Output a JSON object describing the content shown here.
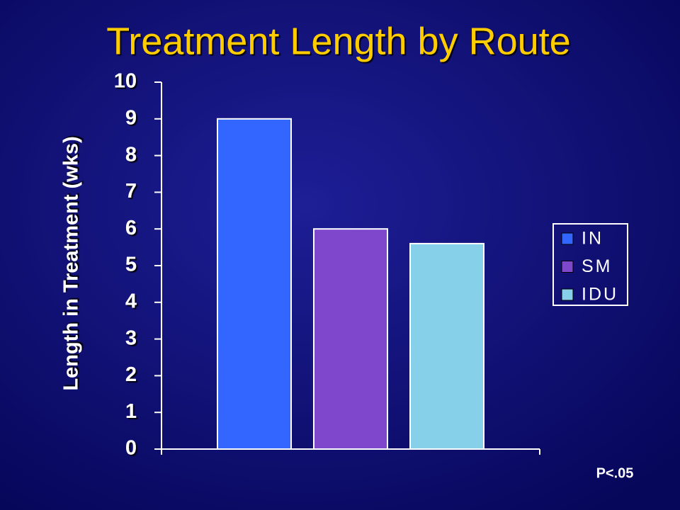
{
  "chart_data": {
    "type": "bar",
    "title": "Treatment Length by Route",
    "y_label": "Length in Treatment (wks)",
    "annotation": "P<.05",
    "categories": [
      null
    ],
    "series": [
      {
        "name": "IN",
        "color": "#3366ff",
        "values": [
          9
        ]
      },
      {
        "name": "SM",
        "color": "#7f48cc",
        "values": [
          6
        ]
      },
      {
        "name": "IDU",
        "color": "#87d0ea",
        "values": [
          5.6
        ]
      }
    ],
    "ylim": [
      0,
      10
    ],
    "yticks": [
      0,
      1,
      2,
      3,
      4,
      5,
      6,
      7,
      8,
      9,
      10
    ],
    "grid": false,
    "legend": "right"
  }
}
